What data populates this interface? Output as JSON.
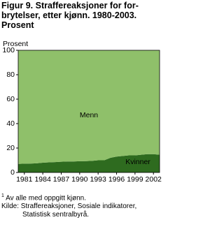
{
  "chart_data": {
    "type": "stacked-area",
    "title_lines": [
      "Figur 9. Straffereaksjoner for for-",
      "brytelser, etter kjønn. 1980-2003.",
      "Prosent"
    ],
    "y_label": "Prosent",
    "x": [
      1980,
      1981,
      1982,
      1983,
      1984,
      1985,
      1986,
      1987,
      1988,
      1989,
      1990,
      1991,
      1992,
      1993,
      1994,
      1995,
      1996,
      1997,
      1998,
      1999,
      2000,
      2001,
      2002,
      2003
    ],
    "series": [
      {
        "name": "Kvinner",
        "color": "#2e6b1f",
        "values": [
          7,
          7.2,
          7.3,
          7.5,
          8,
          8.3,
          8.5,
          8.8,
          9,
          9,
          9.2,
          9.3,
          9.5,
          10,
          10,
          12,
          13,
          13.5,
          14,
          14,
          14.5,
          15,
          15,
          14.5
        ]
      },
      {
        "name": "Menn",
        "color": "#8fc06a",
        "values": [
          93,
          92.8,
          92.7,
          92.5,
          92,
          91.7,
          91.5,
          91.2,
          91,
          91,
          90.8,
          90.7,
          90.5,
          90,
          90,
          88,
          87,
          86.5,
          86,
          86,
          85.5,
          85,
          85,
          85.5
        ]
      }
    ],
    "xlim": [
      1980,
      2003
    ],
    "xticks": [
      1981,
      1984,
      1987,
      1990,
      1993,
      1996,
      1999,
      2002
    ],
    "ylim": [
      0,
      100
    ],
    "yticks": [
      0,
      20,
      40,
      60,
      80,
      100
    ],
    "footnote_mark": "1",
    "footnote": "Av alle med oppgitt kjønn.",
    "source_lines": [
      "Kilde: Straffereaksjoner, Sosiale indikatorer,",
      "Statistisk sentralbyrå."
    ]
  }
}
